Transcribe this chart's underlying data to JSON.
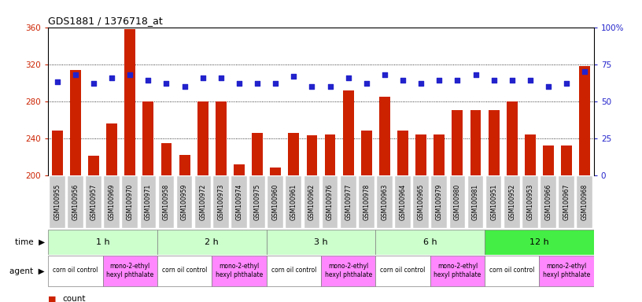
{
  "title": "GDS1881 / 1376718_at",
  "samples": [
    "GSM100955",
    "GSM100956",
    "GSM100957",
    "GSM100969",
    "GSM100970",
    "GSM100971",
    "GSM100958",
    "GSM100959",
    "GSM100972",
    "GSM100973",
    "GSM100974",
    "GSM100975",
    "GSM100960",
    "GSM100961",
    "GSM100962",
    "GSM100976",
    "GSM100977",
    "GSM100978",
    "GSM100963",
    "GSM100964",
    "GSM100965",
    "GSM100979",
    "GSM100980",
    "GSM100981",
    "GSM100951",
    "GSM100952",
    "GSM100953",
    "GSM100966",
    "GSM100967",
    "GSM100968"
  ],
  "counts": [
    248,
    314,
    221,
    256,
    358,
    280,
    235,
    222,
    280,
    280,
    212,
    246,
    208,
    246,
    243,
    244,
    292,
    248,
    285,
    248,
    244,
    244,
    270,
    270,
    270,
    280,
    244,
    232,
    232,
    318
  ],
  "percentiles": [
    63,
    68,
    62,
    66,
    68,
    64,
    62,
    60,
    66,
    66,
    62,
    62,
    62,
    67,
    60,
    60,
    66,
    62,
    68,
    64,
    62,
    64,
    64,
    68,
    64,
    64,
    64,
    60,
    62,
    70
  ],
  "ymin": 200,
  "ymax": 360,
  "yticks_left": [
    200,
    240,
    280,
    320,
    360
  ],
  "yticks_right": [
    0,
    25,
    50,
    75,
    100
  ],
  "bar_color": "#cc2200",
  "dot_color": "#2222cc",
  "grid_lines": [
    240,
    280,
    320
  ],
  "time_groups": [
    {
      "label": "1 h",
      "start": 0,
      "end": 5,
      "color": "#ccffcc"
    },
    {
      "label": "2 h",
      "start": 6,
      "end": 11,
      "color": "#ccffcc"
    },
    {
      "label": "3 h",
      "start": 12,
      "end": 17,
      "color": "#ccffcc"
    },
    {
      "label": "6 h",
      "start": 18,
      "end": 23,
      "color": "#ccffcc"
    },
    {
      "label": "12 h",
      "start": 24,
      "end": 29,
      "color": "#44ee44"
    }
  ],
  "agent_groups": [
    {
      "label": "corn oil control",
      "start": 0,
      "end": 2,
      "color": "#ffffff"
    },
    {
      "label": "mono-2-ethyl\nhexyl phthalate",
      "start": 3,
      "end": 5,
      "color": "#ff88ff"
    },
    {
      "label": "corn oil control",
      "start": 6,
      "end": 8,
      "color": "#ffffff"
    },
    {
      "label": "mono-2-ethyl\nhexyl phthalate",
      "start": 9,
      "end": 11,
      "color": "#ff88ff"
    },
    {
      "label": "corn oil control",
      "start": 12,
      "end": 14,
      "color": "#ffffff"
    },
    {
      "label": "mono-2-ethyl\nhexyl phthalate",
      "start": 15,
      "end": 17,
      "color": "#ff88ff"
    },
    {
      "label": "corn oil control",
      "start": 18,
      "end": 20,
      "color": "#ffffff"
    },
    {
      "label": "mono-2-ethyl\nhexyl phthalate",
      "start": 21,
      "end": 23,
      "color": "#ff88ff"
    },
    {
      "label": "corn oil control",
      "start": 24,
      "end": 26,
      "color": "#ffffff"
    },
    {
      "label": "mono-2-ethyl\nhexyl phthalate",
      "start": 27,
      "end": 29,
      "color": "#ff88ff"
    }
  ],
  "xtick_bg": "#cccccc",
  "bg_color": "#ffffff",
  "tick_label_fontsize": 5.5,
  "right_axis_label_percent": "100%"
}
